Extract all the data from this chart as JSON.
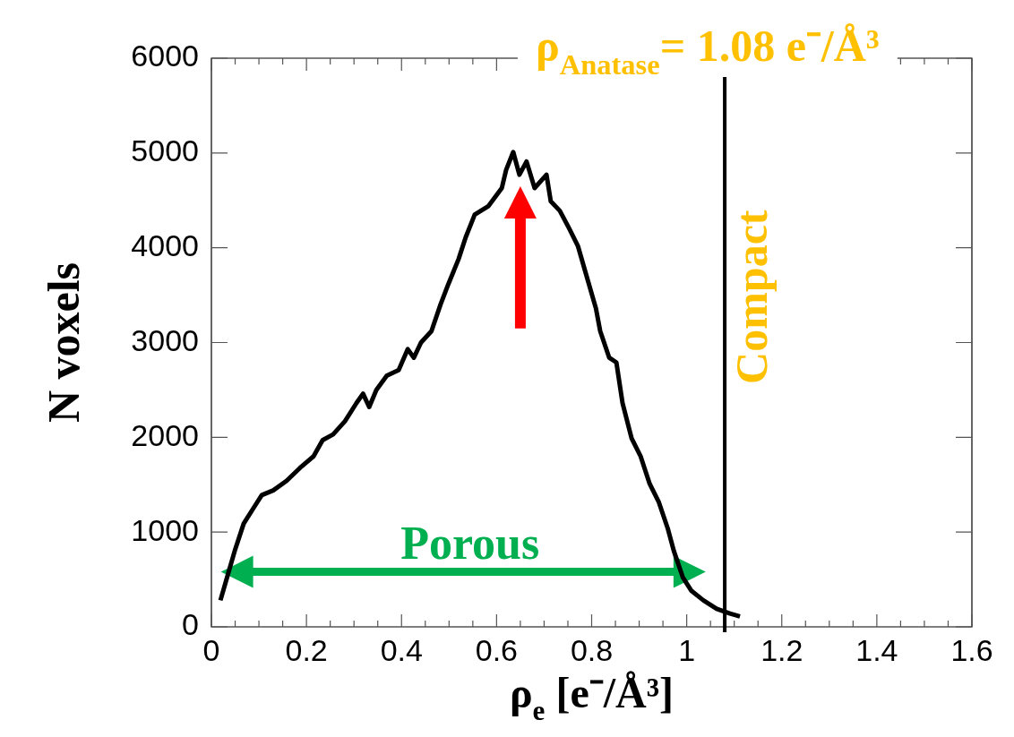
{
  "chart_data": {
    "type": "line",
    "xlabel": "ρ$_{e}$ [e⁻/Å³]",
    "ylabel": "N voxels",
    "x": [
      0.019,
      0.03,
      0.049,
      0.068,
      0.092,
      0.106,
      0.13,
      0.158,
      0.187,
      0.215,
      0.234,
      0.256,
      0.281,
      0.305,
      0.319,
      0.332,
      0.347,
      0.369,
      0.394,
      0.413,
      0.426,
      0.441,
      0.463,
      0.482,
      0.498,
      0.52,
      0.535,
      0.554,
      0.583,
      0.611,
      0.62,
      0.635,
      0.648,
      0.663,
      0.68,
      0.705,
      0.714,
      0.733,
      0.752,
      0.771,
      0.79,
      0.809,
      0.818,
      0.837,
      0.852,
      0.865,
      0.884,
      0.903,
      0.922,
      0.941,
      0.96,
      0.973,
      0.992,
      1.01,
      1.035,
      1.063,
      1.091,
      1.112
    ],
    "series": [
      {
        "color": "#000000",
        "values": [
          280,
          470,
          800,
          1090,
          1280,
          1390,
          1440,
          1540,
          1680,
          1800,
          1970,
          2030,
          2170,
          2360,
          2460,
          2320,
          2500,
          2650,
          2710,
          2930,
          2840,
          3000,
          3120,
          3400,
          3610,
          3880,
          4110,
          4350,
          4440,
          4630,
          4820,
          5010,
          4770,
          4910,
          4630,
          4770,
          4490,
          4390,
          4210,
          4020,
          3690,
          3360,
          3120,
          2840,
          2790,
          2360,
          1990,
          1800,
          1510,
          1320,
          1040,
          800,
          520,
          380,
          280,
          190,
          140,
          110
        ]
      }
    ],
    "xlim": [
      0,
      1.6
    ],
    "xticks": [
      0,
      0.2,
      0.4,
      0.6,
      0.8,
      1,
      1.2,
      1.4,
      1.6
    ],
    "ylim": [
      0,
      6000
    ],
    "yticks": [
      0,
      1000,
      2000,
      3000,
      4000,
      5000,
      6000
    ],
    "grid": false,
    "legend": false,
    "marker": "none",
    "line_style": "solid",
    "ref_lines": [
      {
        "axis": "x",
        "value": 1.08,
        "label": "ρ$_{Anatase}$= 1.08 e⁻/Å³",
        "color": "#000000"
      }
    ],
    "annotations": [
      "Porous",
      "Compact"
    ]
  }
}
